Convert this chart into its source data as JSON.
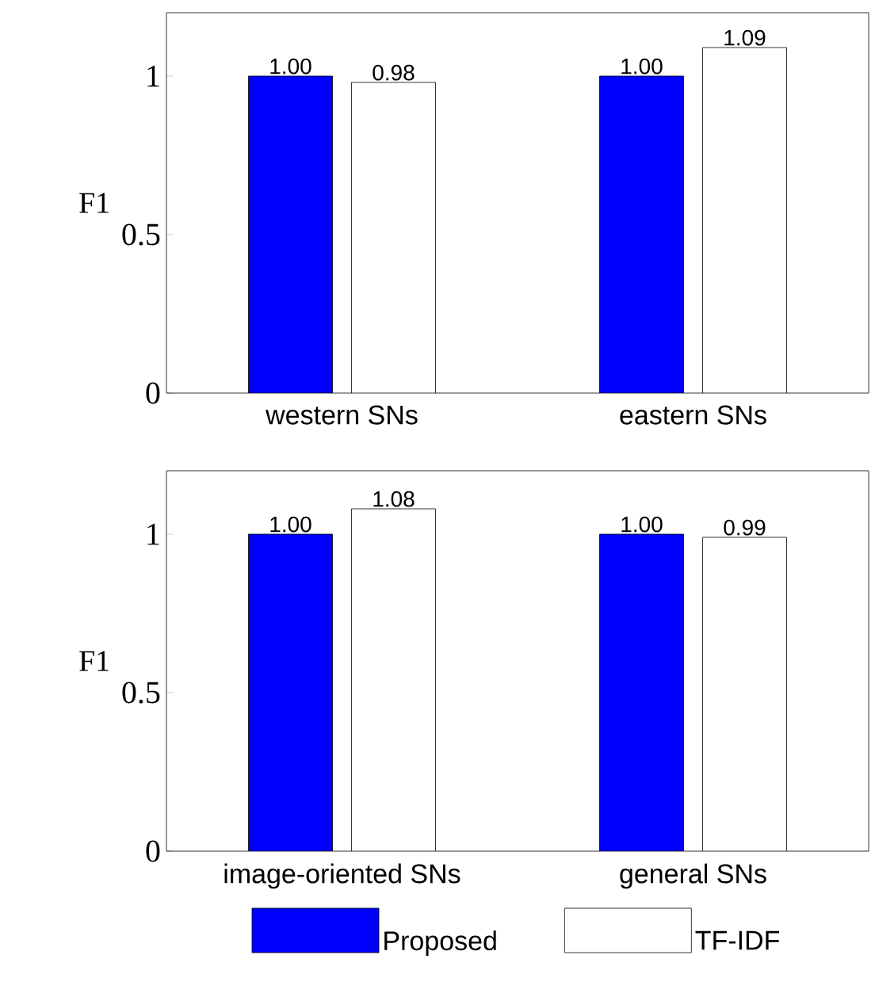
{
  "chart_data": [
    {
      "type": "bar",
      "ylabel": "F1",
      "categories": [
        "western SNs",
        "eastern SNs"
      ],
      "ylim": [
        0,
        1.2
      ],
      "yticks": [
        0,
        0.5,
        1
      ],
      "series": [
        {
          "color": "#0000ff",
          "values": [
            1.0,
            1.0
          ],
          "value_labels": [
            "1.00",
            "1.00"
          ]
        },
        {
          "color": "#ffffff",
          "values": [
            0.98,
            1.09
          ],
          "value_labels": [
            "0.98",
            "1.09"
          ]
        }
      ]
    },
    {
      "type": "bar",
      "ylabel": "F1",
      "categories": [
        "image-oriented SNs",
        "general SNs"
      ],
      "ylim": [
        0,
        1.2
      ],
      "yticks": [
        0,
        0.5,
        1
      ],
      "legend": "bottom",
      "series": [
        {
          "name": "Proposed",
          "color": "#0000ff",
          "values": [
            1.0,
            1.0
          ],
          "value_labels": [
            "1.00",
            "1.00"
          ]
        },
        {
          "name": "TF-IDF",
          "color": "#ffffff",
          "values": [
            1.08,
            0.99
          ],
          "value_labels": [
            "1.08",
            "0.99"
          ]
        }
      ]
    }
  ]
}
